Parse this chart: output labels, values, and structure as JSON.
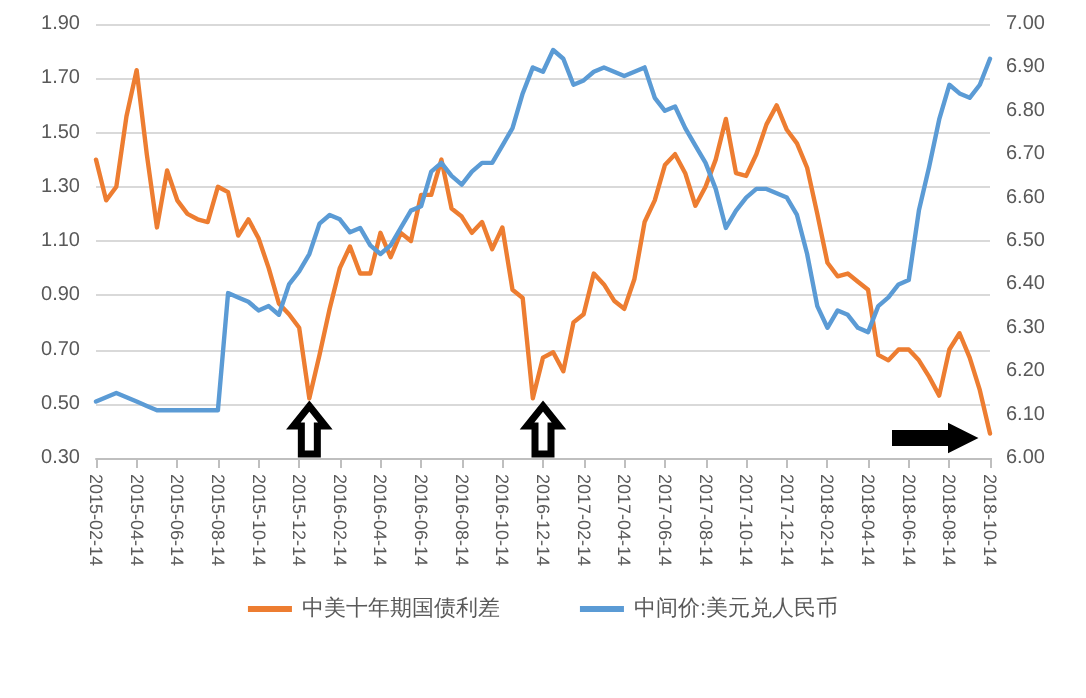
{
  "chart_data": {
    "type": "line",
    "categories": [
      "2015-02-14",
      null,
      null,
      null,
      "2015-04-14",
      null,
      null,
      null,
      "2015-06-14",
      null,
      null,
      null,
      "2015-08-14",
      null,
      null,
      null,
      "2015-10-14",
      null,
      null,
      null,
      "2015-12-14",
      null,
      null,
      null,
      "2016-02-14",
      null,
      null,
      null,
      "2016-04-14",
      null,
      null,
      null,
      "2016-06-14",
      null,
      null,
      null,
      "2016-08-14",
      null,
      null,
      null,
      "2016-10-14",
      null,
      null,
      null,
      "2016-12-14",
      null,
      null,
      null,
      "2017-02-14",
      null,
      null,
      null,
      "2017-04-14",
      null,
      null,
      null,
      "2017-06-14",
      null,
      null,
      null,
      "2017-08-14",
      null,
      null,
      null,
      "2017-10-14",
      null,
      null,
      null,
      "2017-12-14",
      null,
      null,
      null,
      "2018-02-14",
      null,
      null,
      null,
      "2018-04-14",
      null,
      null,
      null,
      "2018-06-14",
      null,
      null,
      null,
      "2018-08-14",
      null,
      null,
      null,
      "2018-10-14"
    ],
    "series": [
      {
        "name": "中美十年期国债利差",
        "color": "#ed7d31",
        "values": [
          1.4,
          1.25,
          1.3,
          1.56,
          1.73,
          1.42,
          1.15,
          1.36,
          1.25,
          1.2,
          1.18,
          1.17,
          1.3,
          1.28,
          1.12,
          1.18,
          1.11,
          1.0,
          0.87,
          0.83,
          0.78,
          0.52,
          0.68,
          0.85,
          1.0,
          1.08,
          0.98,
          0.98,
          1.13,
          1.04,
          1.13,
          1.1,
          1.27,
          1.27,
          1.4,
          1.22,
          1.19,
          1.13,
          1.17,
          1.07,
          1.15,
          0.92,
          0.89,
          0.52,
          0.67,
          0.69,
          0.62,
          0.8,
          0.83,
          0.98,
          0.94,
          0.88,
          0.85,
          0.96,
          1.17,
          1.25,
          1.38,
          1.42,
          1.35,
          1.23,
          1.3,
          1.4,
          1.55,
          1.35,
          1.34,
          1.42,
          1.53,
          1.6,
          1.51,
          1.46,
          1.37,
          1.2,
          1.02,
          0.97,
          0.98,
          0.95,
          0.92,
          0.68,
          0.66,
          0.7,
          0.7,
          0.66,
          0.6,
          0.53,
          0.7,
          0.76,
          0.67,
          0.55,
          0.39
        ]
      },
      {
        "name": "中间价:美元兑人民币",
        "color": "#5b9bd5",
        "axis": "y2",
        "values": [
          6.13,
          6.14,
          6.15,
          6.14,
          6.13,
          6.12,
          6.11,
          6.11,
          6.11,
          6.11,
          6.11,
          6.11,
          6.11,
          6.38,
          6.37,
          6.36,
          6.34,
          6.35,
          6.33,
          6.4,
          6.43,
          6.47,
          6.54,
          6.56,
          6.55,
          6.52,
          6.53,
          6.49,
          6.47,
          6.49,
          6.53,
          6.57,
          6.58,
          6.66,
          6.68,
          6.65,
          6.63,
          6.66,
          6.68,
          6.68,
          6.72,
          6.76,
          6.84,
          6.9,
          6.89,
          6.94,
          6.92,
          6.86,
          6.87,
          6.89,
          6.9,
          6.89,
          6.88,
          6.89,
          6.9,
          6.83,
          6.8,
          6.81,
          6.76,
          6.72,
          6.68,
          6.62,
          6.53,
          6.57,
          6.6,
          6.62,
          6.62,
          6.61,
          6.6,
          6.56,
          6.47,
          6.35,
          6.3,
          6.34,
          6.33,
          6.3,
          6.29,
          6.35,
          6.37,
          6.4,
          6.41,
          6.57,
          6.67,
          6.78,
          6.86,
          6.84,
          6.83,
          6.86,
          6.92
        ]
      }
    ],
    "ylim": [
      0.3,
      1.9
    ],
    "yticks": [
      {
        "value": 0.3,
        "label": "0.30"
      },
      {
        "value": 0.5,
        "label": "0.50"
      },
      {
        "value": 0.7,
        "label": "0.70"
      },
      {
        "value": 0.9,
        "label": "0.90"
      },
      {
        "value": 1.1,
        "label": "1.10"
      },
      {
        "value": 1.3,
        "label": "1.30"
      },
      {
        "value": 1.5,
        "label": "1.50"
      },
      {
        "value": 1.7,
        "label": "1.70"
      },
      {
        "value": 1.9,
        "label": "1.90"
      }
    ],
    "y2lim": [
      6.0,
      7.0
    ],
    "y2ticks": [
      {
        "value": 6.0,
        "label": "6.00"
      },
      {
        "value": 6.1,
        "label": "6.10"
      },
      {
        "value": 6.2,
        "label": "6.20"
      },
      {
        "value": 6.3,
        "label": "6.30"
      },
      {
        "value": 6.4,
        "label": "6.40"
      },
      {
        "value": 6.5,
        "label": "6.50"
      },
      {
        "value": 6.6,
        "label": "6.60"
      },
      {
        "value": 6.7,
        "label": "6.70"
      },
      {
        "value": 6.8,
        "label": "6.80"
      },
      {
        "value": 6.9,
        "label": "6.90"
      },
      {
        "value": 7.0,
        "label": "7.00"
      }
    ],
    "grid": "y",
    "legend": "bottom",
    "marker": "none",
    "line_style": "solid"
  }
}
